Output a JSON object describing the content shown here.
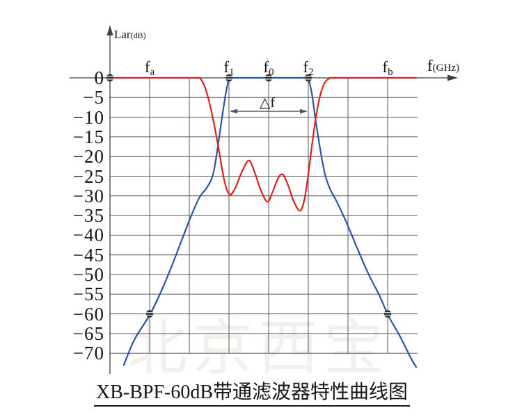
{
  "title": {
    "text": "XB-BPF-60dB带通滤波器特性曲线图"
  },
  "watermark": {
    "text": "北京西宝",
    "color": "#f2efec"
  },
  "axes": {
    "y_label_main": "Lar",
    "y_label_unit": "(dB)",
    "x_label_main": "f",
    "x_label_unit": "(GHz)"
  },
  "annotation": {
    "label": "△f"
  },
  "chart_data": {
    "type": "line",
    "title": "XB-BPF-60dB带通滤波器特性曲线图",
    "ylabel": "Lar(dB)",
    "xlabel": "f(GHz)",
    "ylim": [
      -70,
      0
    ],
    "grid": true,
    "legend_position": "none",
    "note_units": "x values are in symbolic grid units (one unit = one vertical gridline); y values in dB",
    "y_ticks": [
      0,
      -5,
      -10,
      -15,
      -20,
      -25,
      -30,
      -35,
      -40,
      -45,
      -50,
      -55,
      -60,
      -65,
      -70
    ],
    "y_tick_labels": [
      "0",
      "−5",
      "−10",
      "−15",
      "−20",
      "−25",
      "−30",
      "−35",
      "−40",
      "−45",
      "−50",
      "−55",
      "−60",
      "−65",
      "−70"
    ],
    "x_gridlines_u": [
      1,
      2,
      3,
      4,
      5,
      6,
      7
    ],
    "x_ticks": [
      {
        "main": "f",
        "sub": "a",
        "u": 1
      },
      {
        "main": "f",
        "sub": "1",
        "u": 3
      },
      {
        "main": "f",
        "sub": "0",
        "u": 4
      },
      {
        "main": "f",
        "sub": "2",
        "u": 5
      },
      {
        "main": "f",
        "sub": "b",
        "u": 7
      }
    ],
    "colors": {
      "red_curve": "#e01e1e",
      "blue_curve": "#2a54a6",
      "grid": "#57575a",
      "axis": "#3f3f42",
      "marker": "#2e2e30",
      "dimension": "#555558"
    },
    "series": [
      {
        "name": "bandpass-mask-blue",
        "color": "#2a54a6",
        "segments": [
          {
            "mode": "smooth",
            "points": [
              [
                0.35,
                -73
              ],
              [
                0.62,
                -66.5
              ],
              [
                1.0,
                -60.3
              ],
              [
                1.28,
                -54.5
              ],
              [
                1.55,
                -48
              ],
              [
                1.82,
                -41
              ],
              [
                2.05,
                -35
              ],
              [
                2.25,
                -30.5
              ],
              [
                2.45,
                -27.8
              ],
              [
                2.6,
                -24.5
              ],
              [
                2.72,
                -17.5
              ],
              [
                2.82,
                -10.5
              ],
              [
                2.92,
                -4
              ],
              [
                3.0,
                0
              ]
            ]
          },
          {
            "mode": "line",
            "points": [
              [
                3.0,
                0
              ],
              [
                5.0,
                0
              ]
            ]
          },
          {
            "mode": "smooth",
            "points": [
              [
                5.0,
                0
              ],
              [
                5.09,
                -4
              ],
              [
                5.18,
                -10.5
              ],
              [
                5.29,
                -17.5
              ],
              [
                5.42,
                -24.5
              ],
              [
                5.56,
                -28.5
              ],
              [
                5.72,
                -31.5
              ],
              [
                5.95,
                -36.5
              ],
              [
                6.2,
                -42.5
              ],
              [
                6.5,
                -49.5
              ],
              [
                6.8,
                -55.5
              ],
              [
                7.02,
                -60.5
              ],
              [
                7.3,
                -65.5
              ],
              [
                7.6,
                -71.5
              ],
              [
                7.72,
                -73.5
              ]
            ]
          }
        ]
      },
      {
        "name": "response-ripple-red",
        "color": "#e01e1e",
        "segments": [
          {
            "mode": "line",
            "points": [
              [
                0.02,
                0
              ],
              [
                2.27,
                0
              ]
            ]
          },
          {
            "mode": "smooth",
            "points": [
              [
                2.27,
                0
              ],
              [
                2.38,
                -2
              ],
              [
                2.5,
                -6
              ],
              [
                2.62,
                -11.5
              ],
              [
                2.74,
                -18
              ],
              [
                2.86,
                -25
              ],
              [
                2.96,
                -28.8
              ],
              [
                3.06,
                -29.6
              ],
              [
                3.18,
                -27.5
              ],
              [
                3.33,
                -23.8
              ],
              [
                3.5,
                -21
              ],
              [
                3.64,
                -23.8
              ],
              [
                3.8,
                -28.5
              ],
              [
                3.97,
                -31.5
              ],
              [
                4.1,
                -29
              ],
              [
                4.24,
                -25.5
              ],
              [
                4.36,
                -24.6
              ],
              [
                4.49,
                -27.3
              ],
              [
                4.63,
                -31.3
              ],
              [
                4.79,
                -33.8
              ],
              [
                4.9,
                -31
              ],
              [
                5.0,
                -24.5
              ],
              [
                5.1,
                -16.5
              ],
              [
                5.2,
                -9.5
              ],
              [
                5.31,
                -4
              ],
              [
                5.43,
                -1
              ],
              [
                5.56,
                0
              ]
            ]
          },
          {
            "mode": "line",
            "points": [
              [
                5.56,
                0
              ],
              [
                7.72,
                0
              ]
            ]
          }
        ]
      }
    ],
    "markers": {
      "name": "datum-points",
      "points_u_dB": [
        [
          0,
          0
        ],
        [
          3,
          0
        ],
        [
          4,
          0
        ],
        [
          5,
          0
        ],
        [
          1,
          -60
        ],
        [
          7,
          -60
        ]
      ]
    },
    "annotation": {
      "label": "△f",
      "from_u": 3,
      "to_u": 5,
      "dB": -8.5
    }
  }
}
